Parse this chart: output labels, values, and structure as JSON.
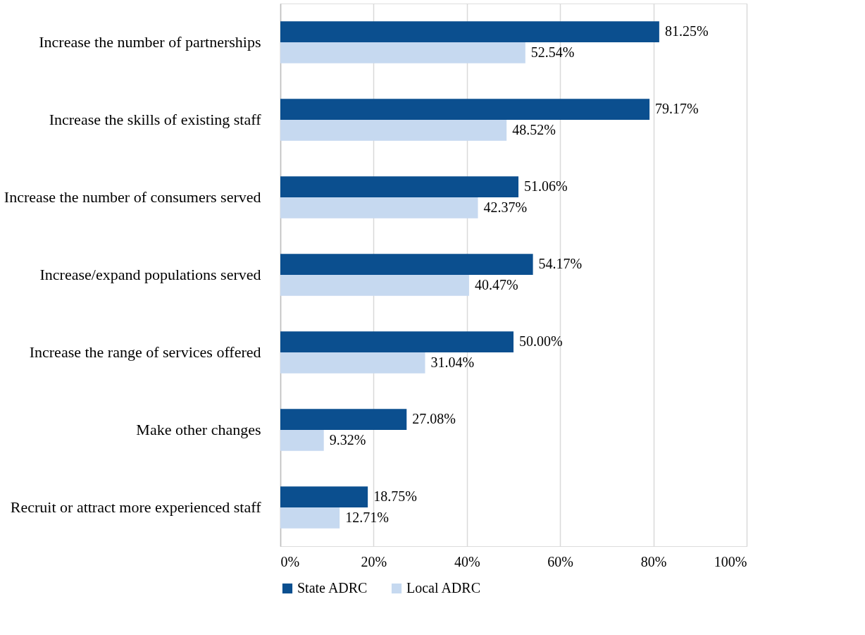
{
  "chart_data": {
    "type": "bar",
    "orientation": "horizontal",
    "categories": [
      "Increase the number of partnerships",
      "Increase the skills of existing staff",
      "Increase the number of consumers served",
      "Increase/expand populations served",
      "Increase the range of services offered",
      "Make other changes",
      "Recruit or attract more experienced staff"
    ],
    "series": [
      {
        "name": "State ADRC",
        "color": "#0b4f8f",
        "values": [
          81.25,
          79.17,
          51.06,
          54.17,
          50.0,
          27.08,
          18.75
        ],
        "value_labels": [
          "81.25%",
          "79.17%",
          "51.06%",
          "54.17%",
          "50.00%",
          "27.08%",
          "18.75%"
        ]
      },
      {
        "name": "Local ADRC",
        "color": "#c6d9f0",
        "values": [
          52.54,
          48.52,
          42.37,
          40.47,
          31.04,
          9.32,
          12.71
        ],
        "value_labels": [
          "52.54%",
          "48.52%",
          "42.37%",
          "40.47%",
          "31.04%",
          "9.32%",
          "12.71%"
        ]
      }
    ],
    "xlim": [
      0,
      100
    ],
    "xticks": [
      {
        "value": 0,
        "label": "0%"
      },
      {
        "value": 20,
        "label": "20%"
      },
      {
        "value": 40,
        "label": "40%"
      },
      {
        "value": 60,
        "label": "60%"
      },
      {
        "value": 80,
        "label": "80%"
      },
      {
        "value": 100,
        "label": "100%"
      }
    ],
    "grid": "x",
    "legend": "bottom"
  }
}
